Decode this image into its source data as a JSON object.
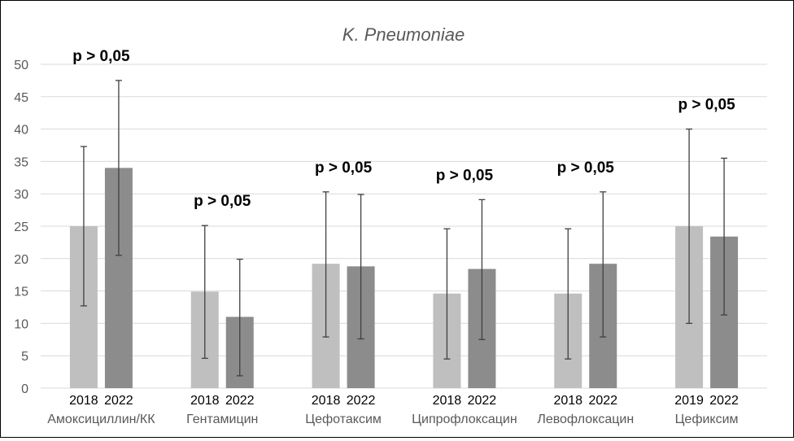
{
  "chart_data": {
    "type": "bar",
    "title": "K. Pneumoniae",
    "xlabel": "",
    "ylabel": "",
    "ylim": [
      0,
      50
    ],
    "yticks": [
      0,
      5,
      10,
      15,
      20,
      25,
      30,
      35,
      40,
      45,
      50
    ],
    "grid": true,
    "colors": {
      "first": "#bfbfbf",
      "second": "#8c8c8c",
      "error": "#404040",
      "grid": "#d9d9d9"
    },
    "groups": [
      {
        "category": "Амоксициллин/КК",
        "p_value": "p > 0,05",
        "bars": [
          {
            "year": "2018",
            "value": 25,
            "err_low": 12.7,
            "err_high": 37.3
          },
          {
            "year": "2022",
            "value": 34,
            "err_low": 20.5,
            "err_high": 47.5
          }
        ]
      },
      {
        "category": "Гентамицин",
        "p_value": "p > 0,05",
        "bars": [
          {
            "year": "2018",
            "value": 14.9,
            "err_low": 4.6,
            "err_high": 25.1
          },
          {
            "year": "2022",
            "value": 11,
            "err_low": 1.9,
            "err_high": 19.9
          }
        ]
      },
      {
        "category": "Цефотаксим",
        "p_value": "p > 0,05",
        "bars": [
          {
            "year": "2018",
            "value": 19.2,
            "err_low": 7.9,
            "err_high": 30.3
          },
          {
            "year": "2022",
            "value": 18.8,
            "err_low": 7.6,
            "err_high": 29.9
          }
        ]
      },
      {
        "category": "Ципрофлоксацин",
        "p_value": "p > 0,05",
        "bars": [
          {
            "year": "2018",
            "value": 14.6,
            "err_low": 4.5,
            "err_high": 24.6
          },
          {
            "year": "2022",
            "value": 18.4,
            "err_low": 7.5,
            "err_high": 29.1
          }
        ]
      },
      {
        "category": "Левофлоксацин",
        "p_value": "p > 0,05",
        "bars": [
          {
            "year": "2018",
            "value": 14.6,
            "err_low": 4.5,
            "err_high": 24.6
          },
          {
            "year": "2022",
            "value": 19.2,
            "err_low": 7.9,
            "err_high": 30.3
          }
        ]
      },
      {
        "category": "Цефиксим",
        "p_value": "p > 0,05",
        "bars": [
          {
            "year": "2019",
            "value": 25,
            "err_low": 10,
            "err_high": 40
          },
          {
            "year": "2022",
            "value": 23.4,
            "err_low": 11.3,
            "err_high": 35.5
          }
        ]
      }
    ]
  }
}
